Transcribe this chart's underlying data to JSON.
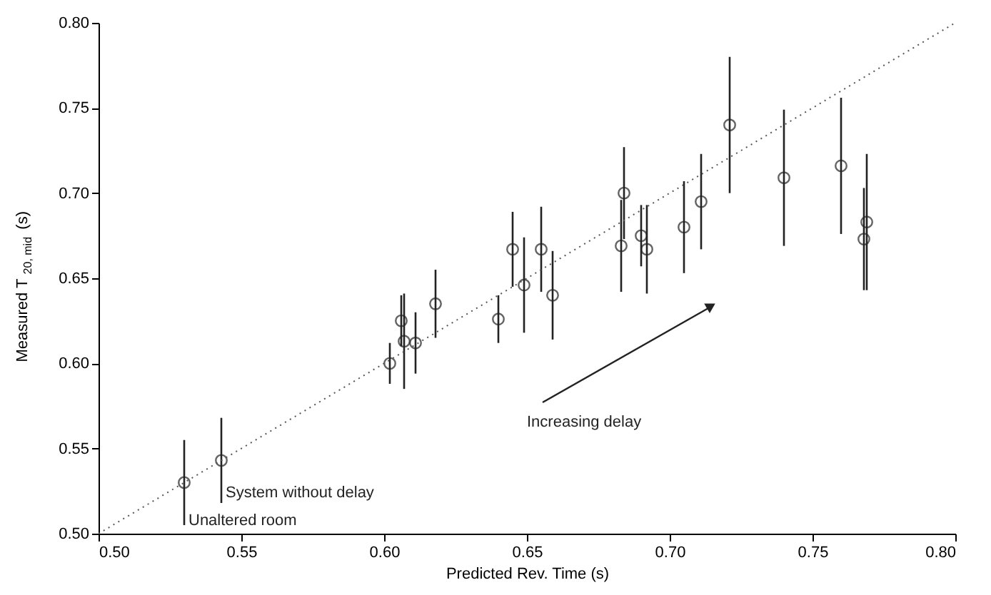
{
  "chart_data": {
    "type": "scatter",
    "xlabel": "Predicted Rev. Time (s)",
    "ylabel": "Measured T$_{20, mid}$ (s)",
    "xlim": [
      0.5,
      0.8
    ],
    "ylim": [
      0.5,
      0.8
    ],
    "xticks": [
      {
        "value": 0.5,
        "label": "0.50"
      },
      {
        "value": 0.55,
        "label": "0.55"
      },
      {
        "value": 0.6,
        "label": "0.60"
      },
      {
        "value": 0.65,
        "label": "0.65"
      },
      {
        "value": 0.7,
        "label": "0.70"
      },
      {
        "value": 0.75,
        "label": "0.75"
      },
      {
        "value": 0.8,
        "label": "0.80"
      }
    ],
    "yticks": [
      {
        "value": 0.5,
        "label": "0.50"
      },
      {
        "value": 0.55,
        "label": "0.55"
      },
      {
        "value": 0.6,
        "label": "0.60"
      },
      {
        "value": 0.65,
        "label": "0.65"
      },
      {
        "value": 0.7,
        "label": "0.70"
      },
      {
        "value": 0.75,
        "label": "0.75"
      },
      {
        "value": 0.8,
        "label": "0.80"
      }
    ],
    "grid": false,
    "series": [
      {
        "color": "#222222",
        "marker": "circle",
        "x": [
          0.53,
          0.543,
          0.602,
          0.606,
          0.607,
          0.611,
          0.618,
          0.64,
          0.645,
          0.649,
          0.655,
          0.659,
          0.683,
          0.684,
          0.69,
          0.692,
          0.705,
          0.711,
          0.721,
          0.74,
          0.76,
          0.768,
          0.769
        ],
        "values": [
          0.53,
          0.543,
          0.6,
          0.625,
          0.613,
          0.612,
          0.635,
          0.626,
          0.667,
          0.646,
          0.667,
          0.64,
          0.669,
          0.7,
          0.675,
          0.667,
          0.68,
          0.695,
          0.74,
          0.709,
          0.716,
          0.673,
          0.683
        ],
        "errors": [
          0.025,
          0.025,
          0.012,
          0.015,
          0.028,
          0.018,
          0.02,
          0.014,
          0.022,
          0.028,
          0.025,
          0.026,
          0.027,
          0.027,
          0.018,
          0.026,
          0.027,
          0.028,
          0.04,
          0.04,
          0.04,
          0.03,
          0.04
        ]
      },
      {
        "type": "line",
        "color": "#555555",
        "line_style": "dotted",
        "marker": "none",
        "x": [
          0.5,
          0.8
        ],
        "values": [
          0.5,
          0.8
        ]
      }
    ],
    "annotations": [
      {
        "text": "Unaltered room",
        "x": 0.53,
        "y": 0.53
      },
      {
        "text": "System without delay",
        "x": 0.543,
        "y": 0.543
      },
      "Increasing delay"
    ]
  }
}
